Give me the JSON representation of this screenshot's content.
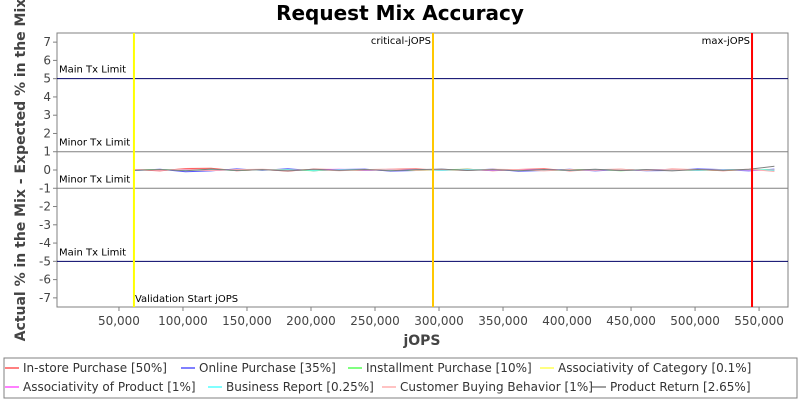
{
  "chart_data": {
    "type": "line",
    "title": "Request Mix Accuracy",
    "xlabel": "jOPS",
    "ylabel": "Actual % in the Mix - Expected % in the Mix",
    "xlim": [
      1600,
      572600
    ],
    "ylim": [
      -7.5,
      7.5
    ],
    "xticks": [
      {
        "value": 50000,
        "label": "50,000"
      },
      {
        "value": 100000,
        "label": "100,000"
      },
      {
        "value": 150000,
        "label": "150,000"
      },
      {
        "value": 200000,
        "label": "200,000"
      },
      {
        "value": 250000,
        "label": "250,000"
      },
      {
        "value": 300000,
        "label": "300,000"
      },
      {
        "value": 350000,
        "label": "350,000"
      },
      {
        "value": 400000,
        "label": "400,000"
      },
      {
        "value": 450000,
        "label": "450,000"
      },
      {
        "value": 500000,
        "label": "500,000"
      },
      {
        "value": 550000,
        "label": "550,000"
      }
    ],
    "yticks": [
      -7,
      -6,
      -5,
      -4,
      -3,
      -2,
      -1,
      0,
      1,
      2,
      3,
      4,
      5,
      6,
      7
    ],
    "hmarkers": [
      {
        "value": 5,
        "label": "Main Tx Limit",
        "color": "#000066"
      },
      {
        "value": 1,
        "label": "Minor Tx Limit",
        "color": "#808080"
      },
      {
        "value": -1,
        "label": "Minor Tx Limit",
        "color": "#808080"
      },
      {
        "value": -5,
        "label": "Main Tx Limit",
        "color": "#000066"
      }
    ],
    "vmarkers": [
      {
        "value": 61700,
        "label": "Validation Start jOPS",
        "color": "#ffff00"
      },
      {
        "value": 295300,
        "label": "critical-jOPS",
        "color": "#ffc800"
      },
      {
        "value": 544500,
        "label": "max-jOPS",
        "color": "#ff0000"
      }
    ],
    "x": [
      62000,
      82000,
      102000,
      122000,
      142000,
      162000,
      182000,
      202000,
      222000,
      242000,
      262000,
      282000,
      302000,
      322000,
      342000,
      362000,
      382000,
      402000,
      422000,
      442000,
      462000,
      482000,
      502000,
      522000,
      542000,
      562000
    ],
    "series": [
      {
        "name": "In-store Purchase [50%]",
        "color": "#ff5555",
        "values": [
          0.02,
          -0.05,
          0.08,
          0.1,
          -0.04,
          0.03,
          -0.06,
          0.05,
          0.02,
          -0.03,
          0.04,
          0.06,
          -0.02,
          0.05,
          -0.04,
          0.03,
          0.07,
          -0.05,
          0.02,
          0.04,
          -0.03,
          0.05,
          0.02,
          -0.04,
          0.03,
          -0.02
        ]
      },
      {
        "name": "Online Purchase [35%]",
        "color": "#5555ff",
        "values": [
          -0.03,
          0.04,
          -0.1,
          -0.05,
          0.06,
          -0.02,
          0.07,
          -0.04,
          0.03,
          0.05,
          -0.06,
          -0.03,
          0.04,
          -0.02,
          0.05,
          -0.07,
          -0.03,
          0.04,
          -0.05,
          0.02,
          -0.04,
          -0.03,
          0.06,
          0.02,
          -0.05,
          0.05
        ]
      },
      {
        "name": "Installment Purchase [10%]",
        "color": "#55ff55",
        "values": [
          0.01,
          0.03,
          -0.02,
          0.04,
          -0.03,
          0.02,
          0.01,
          -0.04,
          0.03,
          -0.01,
          0.02,
          -0.03,
          0.01,
          0.04,
          -0.02,
          0.01,
          -0.03,
          0.02,
          0.03,
          -0.04,
          0.02,
          0.01,
          -0.02,
          0.03,
          -0.01,
          0.02
        ]
      },
      {
        "name": "Associativity of Category [0.1%]",
        "color": "#ffff55",
        "values": [
          0,
          0.01,
          0,
          -0.01,
          0.01,
          0,
          0,
          0.01,
          -0.01,
          0,
          0.01,
          0,
          -0.01,
          0,
          0.01,
          0,
          0,
          -0.01,
          0.01,
          0,
          0,
          0.01,
          0,
          -0.01,
          0,
          0.01
        ]
      },
      {
        "name": "Associativity of Product [1%]",
        "color": "#ff55ff",
        "values": [
          0.02,
          -0.01,
          0.03,
          -0.02,
          0.01,
          0.02,
          -0.03,
          0.01,
          0.04,
          -0.02,
          0.01,
          0.03,
          -0.01,
          0.02,
          -0.03,
          0.01,
          0.02,
          -0.01,
          0.03,
          -0.02,
          0.01,
          0.02,
          -0.01,
          0.03,
          -0.02,
          0.01
        ]
      },
      {
        "name": "Business Report [0.25%]",
        "color": "#55ffff",
        "values": [
          -0.01,
          0.02,
          -0.02,
          0.01,
          -0.01,
          0.02,
          0.01,
          -0.02,
          0.01,
          0.02,
          -0.01,
          0.01,
          -0.02,
          0.01,
          0.02,
          -0.01,
          0.01,
          -0.02,
          0.01,
          0.02,
          -0.01,
          0.02,
          -0.01,
          0.01,
          0.02,
          -0.01
        ]
      },
      {
        "name": "Customer Buying Behavior [1%]",
        "color": "#ffafaf",
        "values": [
          0.03,
          -0.02,
          0.05,
          -0.03,
          0.02,
          0.04,
          -0.02,
          0.03,
          -0.04,
          0.02,
          0.05,
          -0.02,
          0.03,
          -0.03,
          0.04,
          0.02,
          -0.05,
          0.03,
          -0.02,
          0.04,
          -0.03,
          0.02,
          0.03,
          -0.02,
          0.04,
          -0.08
        ]
      },
      {
        "name": "Product Return [2.65%]",
        "color": "#808080",
        "values": [
          -0.02,
          0.03,
          -0.04,
          0.05,
          -0.03,
          0.02,
          -0.05,
          0.04,
          -0.02,
          0.03,
          -0.04,
          0.02,
          0.05,
          -0.03,
          0.02,
          -0.04,
          0.03,
          -0.02,
          0.04,
          -0.03,
          0.02,
          -0.05,
          0.03,
          -0.02,
          0.04,
          0.2
        ]
      }
    ]
  }
}
